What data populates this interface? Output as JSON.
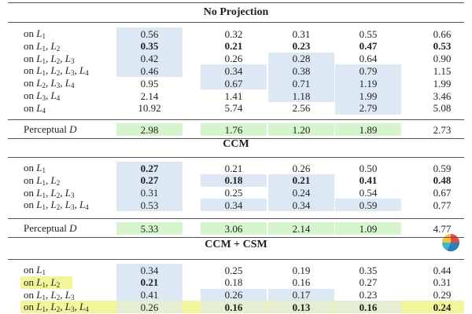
{
  "sections": [
    {
      "title": "No Projection",
      "rows": [
        {
          "label": "on L1",
          "cells": [
            "0.56",
            "0.32",
            "0.31",
            "0.55",
            "0.66"
          ]
        },
        {
          "label": "on L1, L2",
          "cells": [
            "0.35",
            "0.21",
            "0.23",
            "0.47",
            "0.53"
          ]
        },
        {
          "label": "on L1, L2, L3",
          "cells": [
            "0.42",
            "0.26",
            "0.28",
            "0.64",
            "0.90"
          ]
        },
        {
          "label": "on L1, L2, L3, L4",
          "cells": [
            "0.46",
            "0.34",
            "0.38",
            "0.79",
            "1.15"
          ]
        },
        {
          "label": "on L2, L3, L4",
          "cells": [
            "0.95",
            "0.67",
            "0.71",
            "1.19",
            "1.99"
          ]
        },
        {
          "label": "on L3, L4",
          "cells": [
            "2.14",
            "1.41",
            "1.18",
            "1.99",
            "3.46"
          ]
        },
        {
          "label": "on L4",
          "cells": [
            "10.92",
            "5.74",
            "2.56",
            "2.79",
            "5.08"
          ]
        }
      ],
      "perceptual": {
        "label": "Perceptual D",
        "cells": [
          "2.98",
          "1.76",
          "1.20",
          "1.89",
          "2.73"
        ]
      }
    },
    {
      "title": "CCM",
      "rows": [
        {
          "label": "on L1",
          "cells": [
            "0.27",
            "0.21",
            "0.26",
            "0.50",
            "0.59"
          ]
        },
        {
          "label": "on L1, L2",
          "cells": [
            "0.27",
            "0.18",
            "0.21",
            "0.41",
            "0.48"
          ]
        },
        {
          "label": "on L1, L2, L3",
          "cells": [
            "0.31",
            "0.25",
            "0.24",
            "0.54",
            "0.67"
          ]
        },
        {
          "label": "on L1, L2, L3, L4",
          "cells": [
            "0.53",
            "0.34",
            "0.34",
            "0.59",
            "0.77"
          ]
        }
      ],
      "perceptual": {
        "label": "Perceptual D",
        "cells": [
          "5.33",
          "3.06",
          "2.14",
          "1.09",
          "4.77"
        ]
      }
    },
    {
      "title": "CCM + CSM",
      "rows": [
        {
          "label": "on L1",
          "cells": [
            "0.34",
            "0.25",
            "0.19",
            "0.35",
            "0.44"
          ]
        },
        {
          "label": "on L1, L2",
          "cells": [
            "0.21",
            "0.18",
            "0.16",
            "0.27",
            "0.31"
          ]
        },
        {
          "label": "on L1, L2, L3",
          "cells": [
            "0.41",
            "0.26",
            "0.17",
            "0.23",
            "0.29"
          ]
        },
        {
          "label": "on L1, L2, L3, L4",
          "cells": [
            "0.26",
            "0.16",
            "0.13",
            "0.16",
            "0.24"
          ]
        }
      ]
    }
  ]
}
